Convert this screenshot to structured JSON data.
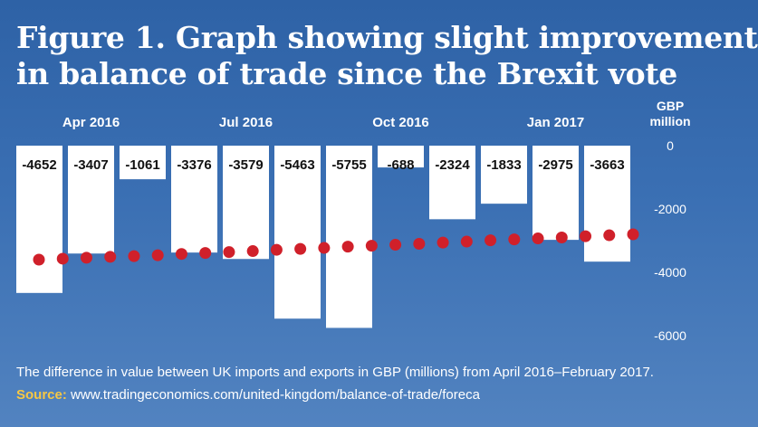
{
  "title": {
    "line1": "Figure 1. Graph showing slight improvement",
    "line2": "in balance of trade since the Brexit vote"
  },
  "caption": "The difference in value between UK imports and exports in GBP (millions) from April 2016–February 2017.",
  "source": {
    "label": "Source:",
    "text": " www.tradingeconomics.com/united-kingdom/balance-of-trade/foreca"
  },
  "chart_data": {
    "type": "bar",
    "unit_label": [
      "GBP",
      "million"
    ],
    "x_tick_labels": [
      "Apr 2016",
      "Jul 2016",
      "Oct 2016",
      "Jan 2017"
    ],
    "values": [
      -4652,
      -3407,
      -1061,
      -3376,
      -3579,
      -5463,
      -5755,
      -688,
      -2324,
      -1833,
      -2975,
      -3663
    ],
    "data_labels": [
      "-4652",
      "-3407",
      "-1061",
      "-3376",
      "-3579",
      "-5463",
      "-5755",
      "-688",
      "-2324",
      "-1833",
      "-2975",
      "-3663"
    ],
    "y_ticks": [
      "0",
      "-2000",
      "-4000",
      "-6000"
    ],
    "ylim": [
      -6000,
      0
    ],
    "trend": {
      "color": "#d0202a",
      "values": [
        -3600,
        -3570,
        -3540,
        -3510,
        -3490,
        -3460,
        -3420,
        -3390,
        -3360,
        -3330,
        -3290,
        -3260,
        -3230,
        -3190,
        -3160,
        -3130,
        -3100,
        -3060,
        -3030,
        -2990,
        -2960,
        -2930,
        -2900,
        -2860,
        -2830,
        -2800
      ]
    },
    "colors": {
      "bar": "#ffffff",
      "text": "#111111",
      "axis_text": "#ffffff"
    }
  }
}
